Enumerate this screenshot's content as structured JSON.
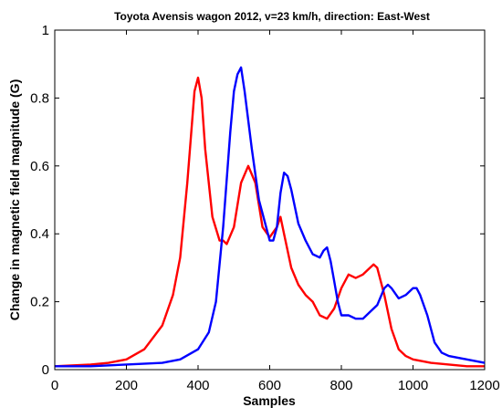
{
  "chart_data": {
    "type": "line",
    "title": "Toyota Avensis wagon 2012, v=23 km/h, direction: East-West",
    "xlabel": "Samples",
    "ylabel": "Change in magnetic field magnitude (G)",
    "xlim": [
      0,
      1200
    ],
    "ylim": [
      0,
      1
    ],
    "xticks": [
      "0",
      "200",
      "400",
      "600",
      "800",
      "1000",
      "1200"
    ],
    "yticks": [
      "0",
      "0.2",
      "0.4",
      "0.6",
      "0.8",
      "1"
    ],
    "grid": false,
    "legend": "none",
    "series": [
      {
        "color": "#ff0000",
        "x": [
          0,
          100,
          150,
          200,
          250,
          300,
          330,
          350,
          370,
          390,
          400,
          410,
          420,
          440,
          460,
          470,
          480,
          500,
          520,
          540,
          560,
          580,
          600,
          620,
          630,
          640,
          660,
          680,
          700,
          720,
          740,
          760,
          780,
          800,
          820,
          840,
          860,
          880,
          890,
          900,
          920,
          940,
          960,
          980,
          1000,
          1050,
          1100,
          1150,
          1200
        ],
        "y": [
          0.01,
          0.015,
          0.02,
          0.03,
          0.06,
          0.13,
          0.22,
          0.33,
          0.55,
          0.82,
          0.86,
          0.8,
          0.65,
          0.45,
          0.38,
          0.38,
          0.37,
          0.42,
          0.55,
          0.6,
          0.55,
          0.42,
          0.39,
          0.42,
          0.45,
          0.4,
          0.3,
          0.25,
          0.22,
          0.2,
          0.16,
          0.15,
          0.18,
          0.24,
          0.28,
          0.27,
          0.28,
          0.3,
          0.31,
          0.3,
          0.22,
          0.12,
          0.06,
          0.04,
          0.03,
          0.02,
          0.015,
          0.01,
          0.01
        ]
      },
      {
        "color": "#0000ff",
        "x": [
          0,
          100,
          200,
          300,
          350,
          400,
          430,
          450,
          470,
          490,
          500,
          510,
          520,
          530,
          550,
          570,
          590,
          600,
          610,
          620,
          630,
          640,
          650,
          660,
          680,
          700,
          720,
          740,
          750,
          760,
          770,
          780,
          790,
          800,
          820,
          840,
          860,
          880,
          900,
          920,
          930,
          940,
          960,
          980,
          1000,
          1010,
          1020,
          1040,
          1060,
          1080,
          1100,
          1150,
          1200
        ],
        "y": [
          0.01,
          0.01,
          0.015,
          0.02,
          0.03,
          0.06,
          0.11,
          0.2,
          0.42,
          0.7,
          0.82,
          0.87,
          0.89,
          0.82,
          0.65,
          0.5,
          0.42,
          0.38,
          0.38,
          0.42,
          0.52,
          0.58,
          0.57,
          0.53,
          0.43,
          0.38,
          0.34,
          0.33,
          0.35,
          0.36,
          0.32,
          0.26,
          0.2,
          0.16,
          0.16,
          0.15,
          0.15,
          0.17,
          0.19,
          0.24,
          0.25,
          0.24,
          0.21,
          0.22,
          0.24,
          0.24,
          0.22,
          0.16,
          0.08,
          0.05,
          0.04,
          0.03,
          0.02
        ]
      }
    ]
  }
}
